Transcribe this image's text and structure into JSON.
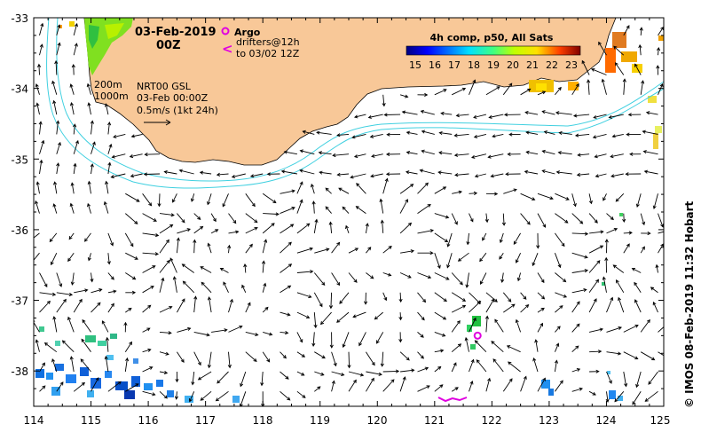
{
  "map": {
    "date_label": "03-Feb-2019",
    "time_label": "00Z",
    "legend": {
      "argo_label": "Argo",
      "drifters_label": "drifters@12h",
      "drifters_to_label": "to 03/02 12Z",
      "argo_color": "#e000e0",
      "drifter_color": "#e000e0"
    },
    "isobaths": {
      "shallow": "200m",
      "deep": "1000m",
      "color": "#40d0e0"
    },
    "product": {
      "name": "NRT00 GSL",
      "datetime": "03-Feb 00:00Z",
      "scale": "0.5m/s (1kt 24h)"
    },
    "colorbar": {
      "title": "4h comp, p50, All Sats",
      "ticks": [
        "15",
        "16",
        "17",
        "18",
        "19",
        "20",
        "21",
        "22",
        "23"
      ],
      "min": 14.5,
      "max": 23.5
    },
    "x_ticks": [
      "114",
      "115",
      "116",
      "117",
      "118",
      "119",
      "120",
      "121",
      "122",
      "123",
      "124",
      "125"
    ],
    "y_ticks": [
      "-33",
      "-34",
      "-35",
      "-36",
      "-37",
      "-38"
    ],
    "credit": "© IMOS 08-Feb-2019 11:32 Hobart",
    "land_color": "#f8c898",
    "argo_float": {
      "lon": 121.75,
      "lat": -37.5
    },
    "extent": {
      "lon_min": 114,
      "lon_max": 125,
      "lat_min": -38.5,
      "lat_max": -33
    }
  }
}
